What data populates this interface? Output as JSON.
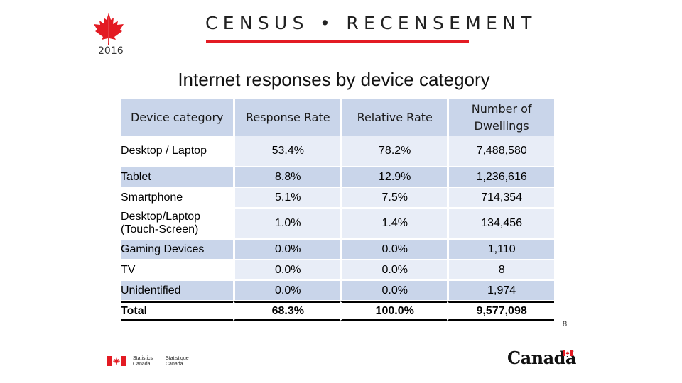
{
  "header": {
    "logo_year": "2016",
    "census_title": "CENSUS • RECENSEMENT"
  },
  "slide": {
    "title": "Internet responses by device category",
    "page_number": "8"
  },
  "table": {
    "headers": {
      "device": "Device category",
      "response": "Response Rate",
      "relative": "Relative Rate",
      "dwellings_line1": "Number of",
      "dwellings_line2": "Dwellings"
    },
    "rows": [
      {
        "device": "Desktop / Laptop",
        "response": "53.4%",
        "relative": "78.2%",
        "dwellings": "7,488,580"
      },
      {
        "device": "Tablet",
        "response": "8.8%",
        "relative": "12.9%",
        "dwellings": "1,236,616"
      },
      {
        "device": "Smartphone",
        "response": "5.1%",
        "relative": "7.5%",
        "dwellings": "714,354"
      },
      {
        "device_line1": "Desktop/Laptop",
        "device_line2": "(Touch-Screen)",
        "response": "1.0%",
        "relative": "1.4%",
        "dwellings": "134,456"
      },
      {
        "device": "Gaming Devices",
        "response": "0.0%",
        "relative": "0.0%",
        "dwellings": "1,110"
      },
      {
        "device": "TV",
        "response": "0.0%",
        "relative": "0.0%",
        "dwellings": "8"
      },
      {
        "device": "Unidentified",
        "response": "0.0%",
        "relative": "0.0%",
        "dwellings": "1,974"
      }
    ],
    "total": {
      "device": "Total",
      "response": "68.3%",
      "relative": "100.0%",
      "dwellings": "9,577,098"
    }
  },
  "footer": {
    "sc_en_line1": "Statistics",
    "sc_en_line2": "Canada",
    "sc_fr_line1": "Statistique",
    "sc_fr_line2": "Canada",
    "wordmark": "Canadä"
  },
  "colors": {
    "accent_red": "#e31b23",
    "table_header": "#c9d5ea",
    "table_light": "#e8edf7"
  }
}
